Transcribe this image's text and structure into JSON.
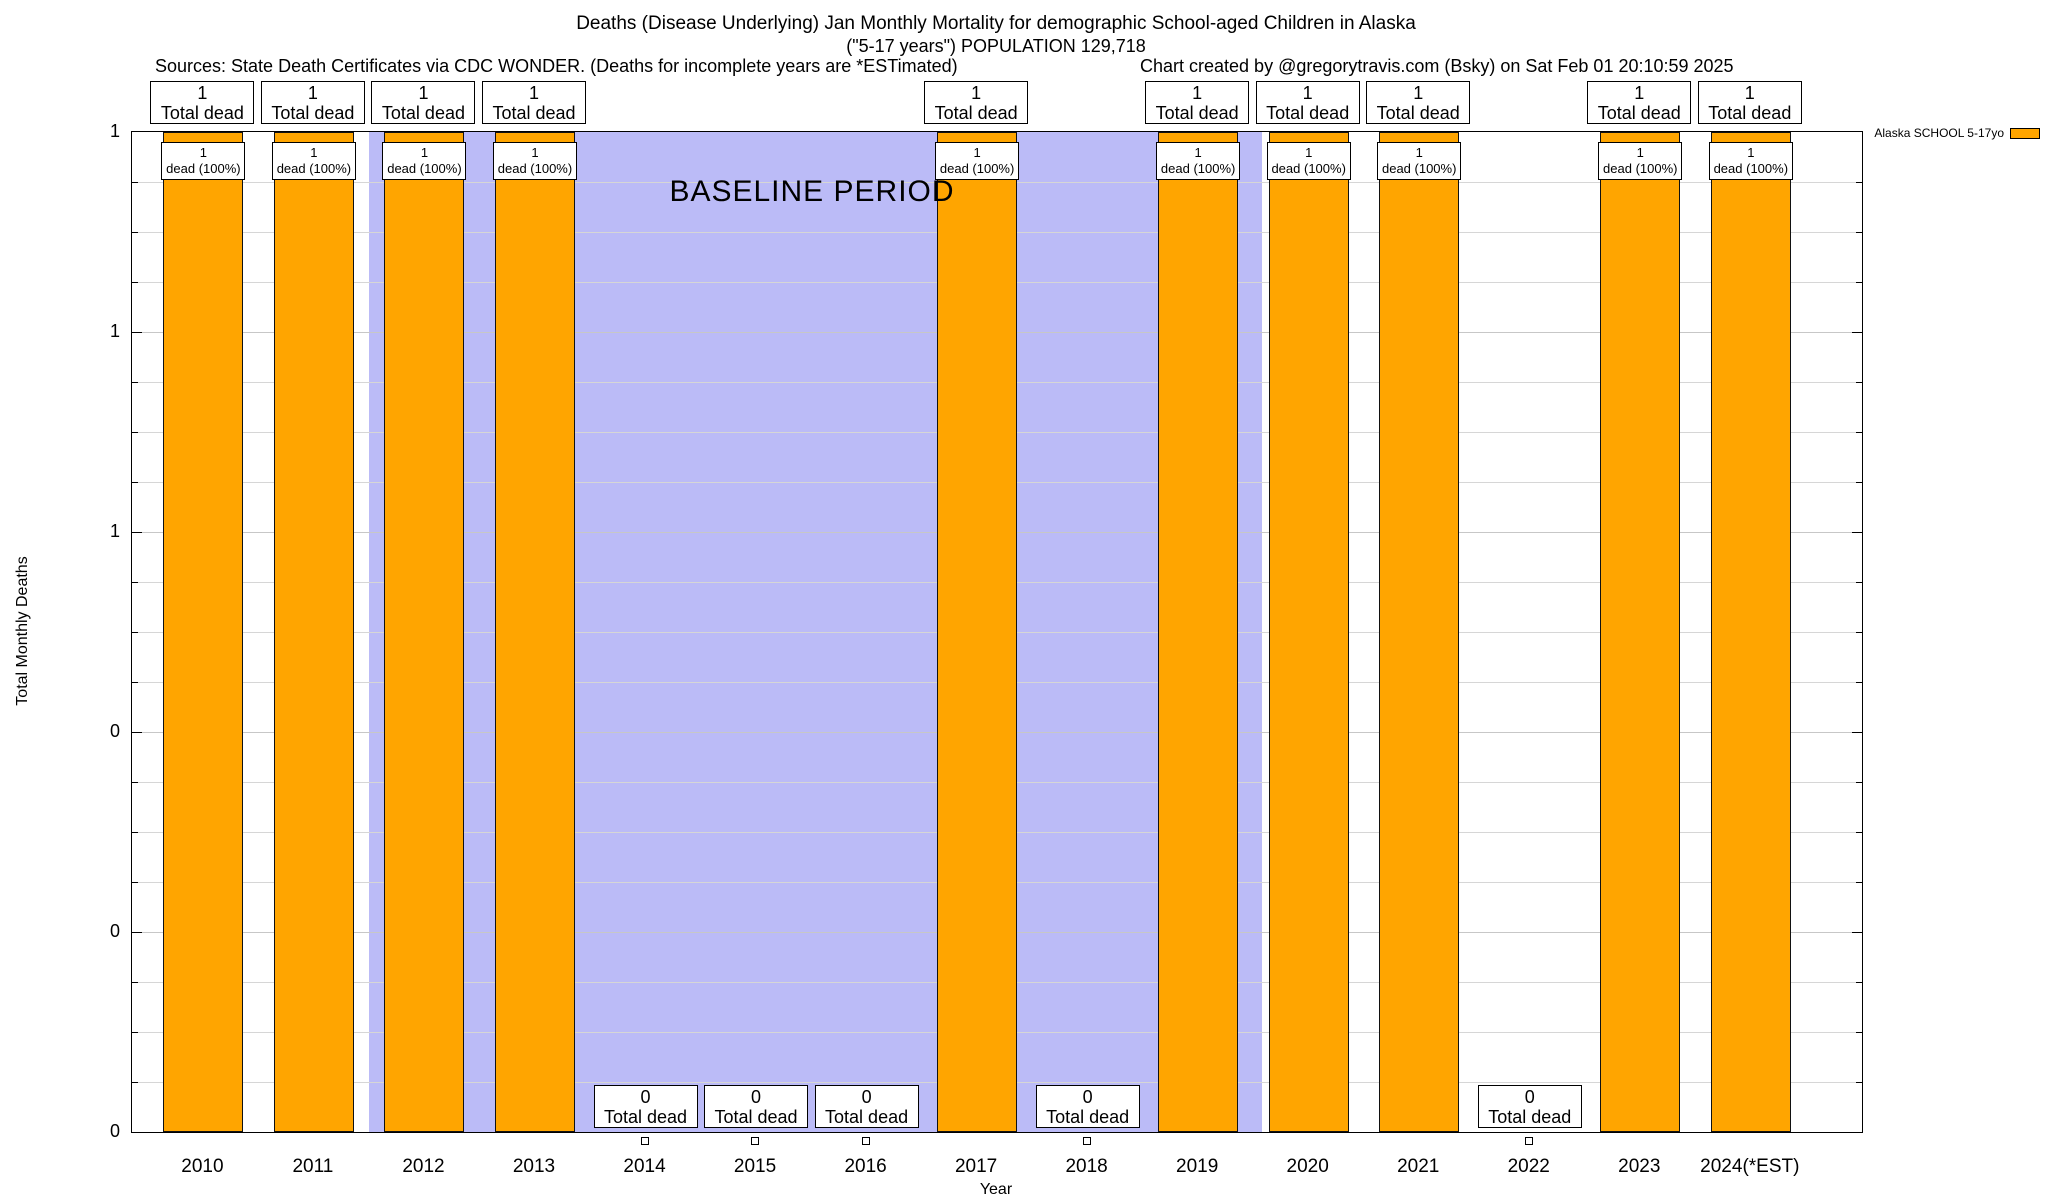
{
  "header": {
    "title_line1": "Deaths (Disease Underlying) Jan Monthly Mortality for demographic School-aged Children in Alaska",
    "title_line2": "(\"5-17 years\") POPULATION 129,718",
    "sources": "Sources: State Death Certificates via CDC WONDER. (Deaths for incomplete years are *ESTimated)",
    "credit": "Chart created by @gregorytravis.com (Bsky) on Sat Feb 01 20:10:59 2025"
  },
  "legend": {
    "label": "Alaska SCHOOL 5-17yo",
    "swatch_color": "#ffa500"
  },
  "labels": {
    "total_dead": "Total dead",
    "dead_pct": "dead (100%)",
    "baseline": "BASELINE PERIOD",
    "ylabel": "Total Monthly Deaths",
    "xlabel": "Year"
  },
  "axes": {
    "ytick_labels": [
      "1",
      "1",
      "1",
      "0",
      "0",
      "0"
    ],
    "ylim": [
      0,
      1
    ]
  },
  "colors": {
    "bar": "#ffa500",
    "baseline_band": "#bbbbf7",
    "grid": "#d6d6d6"
  },
  "chart_data": {
    "type": "bar",
    "title": "Deaths (Disease Underlying) Jan Monthly Mortality for demographic School-aged Children in Alaska (\"5-17 years\") POPULATION 129,718",
    "xlabel": "Year",
    "ylabel": "Total Monthly Deaths",
    "ylim": [
      0,
      1
    ],
    "series_name": "Alaska SCHOOL 5-17yo",
    "legend_position": "top-right",
    "grid": true,
    "baseline_period": {
      "label": "BASELINE PERIOD",
      "from": 2011.5,
      "to": 2019.5
    },
    "categories": [
      "2010",
      "2011",
      "2012",
      "2013",
      "2014",
      "2015",
      "2016",
      "2017",
      "2018",
      "2019",
      "2020",
      "2021",
      "2022",
      "2023",
      "2024(*EST)"
    ],
    "values": [
      1,
      1,
      1,
      1,
      0,
      0,
      0,
      1,
      0,
      1,
      1,
      1,
      0,
      1,
      1
    ],
    "years": [
      {
        "label": "2010",
        "value": 1,
        "count": "1"
      },
      {
        "label": "2011",
        "value": 1,
        "count": "1"
      },
      {
        "label": "2012",
        "value": 1,
        "count": "1"
      },
      {
        "label": "2013",
        "value": 1,
        "count": "1"
      },
      {
        "label": "2014",
        "value": 0,
        "count": "0"
      },
      {
        "label": "2015",
        "value": 0,
        "count": "0"
      },
      {
        "label": "2016",
        "value": 0,
        "count": "0"
      },
      {
        "label": "2017",
        "value": 1,
        "count": "1"
      },
      {
        "label": "2018",
        "value": 0,
        "count": "0"
      },
      {
        "label": "2019",
        "value": 1,
        "count": "1"
      },
      {
        "label": "2020",
        "value": 1,
        "count": "1"
      },
      {
        "label": "2021",
        "value": 1,
        "count": "1"
      },
      {
        "label": "2022",
        "value": 0,
        "count": "0"
      },
      {
        "label": "2023",
        "value": 1,
        "count": "1"
      },
      {
        "label": "2024(*EST)",
        "value": 1,
        "count": "1"
      }
    ]
  }
}
